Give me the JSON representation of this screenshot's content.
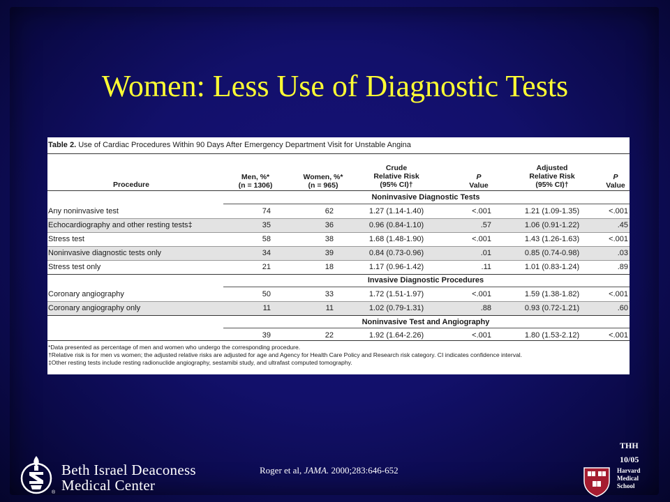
{
  "title": "Women: Less Use of Diagnostic Tests",
  "table": {
    "caption_label": "Table 2.",
    "caption_text": "Use of Cardiac Procedures Within 90 Days After Emergency Department Visit for Unstable Angina",
    "headers": {
      "procedure": "Procedure",
      "men_line1": "Men, %*",
      "men_line2": "(n = 1306)",
      "women_line1": "Women, %*",
      "women_line2": "(n = 965)",
      "crude_line1": "Crude",
      "crude_line2": "Relative Risk",
      "crude_line3": "(95% CI)†",
      "p1_line1": "P",
      "p1_line2": "Value",
      "adj_line1": "Adjusted",
      "adj_line2": "Relative Risk",
      "adj_line3": "(95% CI)†",
      "p2_line1": "P",
      "p2_line2": "Value"
    },
    "sections": [
      {
        "title": "Noninvasive Diagnostic Tests",
        "rows": [
          {
            "procedure": "Any noninvasive test",
            "men": "74",
            "women": "62",
            "crude": "1.27 (1.14-1.40)",
            "p1": "<.001",
            "adjusted": "1.21 (1.09-1.35)",
            "p2": "<.001"
          },
          {
            "procedure": "Echocardiography and other resting tests‡",
            "men": "35",
            "women": "36",
            "crude": "0.96 (0.84-1.10)",
            "p1": ".57",
            "adjusted": "1.06 (0.91-1.22)",
            "p2": ".45"
          },
          {
            "procedure": "Stress test",
            "men": "58",
            "women": "38",
            "crude": "1.68 (1.48-1.90)",
            "p1": "<.001",
            "adjusted": "1.43 (1.26-1.63)",
            "p2": "<.001"
          },
          {
            "procedure": "Noninvasive diagnostic tests only",
            "men": "34",
            "women": "39",
            "crude": "0.84 (0.73-0.96)",
            "p1": ".01",
            "adjusted": "0.85 (0.74-0.98)",
            "p2": ".03"
          },
          {
            "procedure": "Stress test only",
            "men": "21",
            "women": "18",
            "crude": "1.17 (0.96-1.42)",
            "p1": ".11",
            "adjusted": "1.01 (0.83-1.24)",
            "p2": ".89"
          }
        ]
      },
      {
        "title": "Invasive Diagnostic Procedures",
        "rows": [
          {
            "procedure": "Coronary angiography",
            "men": "50",
            "women": "33",
            "crude": "1.72 (1.51-1.97)",
            "p1": "<.001",
            "adjusted": "1.59 (1.38-1.82)",
            "p2": "<.001"
          },
          {
            "procedure": "Coronary angiography only",
            "men": "11",
            "women": "11",
            "crude": "1.02 (0.79-1.31)",
            "p1": ".88",
            "adjusted": "0.93 (0.72-1.21)",
            "p2": ".60"
          }
        ]
      },
      {
        "title": "Noninvasive Test and Angiography",
        "rows": [
          {
            "procedure": "",
            "men": "39",
            "women": "22",
            "crude": "1.92 (1.64-2.26)",
            "p1": "<.001",
            "adjusted": "1.80 (1.53-2.12)",
            "p2": "<.001"
          }
        ]
      }
    ],
    "footnotes": [
      "*Data presented as percentage of men and women who undergo the corresponding procedure.",
      "†Relative risk is for men vs women; the adjusted relative risks are adjusted for age and Agency for Health Care Policy and Research risk category. CI indicates confidence interval.",
      "‡Other resting tests include resting radionuclide angiography, sestamibi study, and ultrafast computed tomography."
    ]
  },
  "citation": {
    "prefix": "Roger et al, ",
    "journal": "JAMA.",
    "suffix": " 2000;283:646-652"
  },
  "footer": {
    "initials": "THH",
    "date": "10/05",
    "school_line1": "Harvard",
    "school_line2": "Medical",
    "school_line3": "School",
    "org_line1": "Beth Israel Deaconess",
    "org_line2": "Medical Center"
  },
  "colors": {
    "background": "#12106a",
    "title": "#ffff33",
    "harvard_crimson": "#a51c30"
  }
}
